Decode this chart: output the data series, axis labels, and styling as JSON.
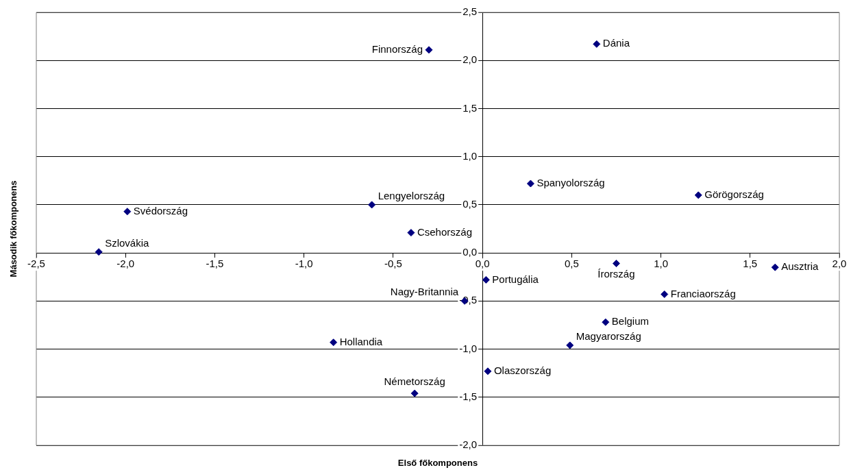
{
  "chart_data": {
    "type": "scatter",
    "xlabel": "Első főkomponens",
    "ylabel": "Második főkomponens",
    "series": [
      {
        "type": "scatter",
        "color": "#000080",
        "x": [
          -0.3,
          0.64,
          0.27,
          1.21,
          -0.62,
          -1.99,
          -2.15,
          -0.4,
          0.75,
          1.64,
          0.02,
          -0.1,
          1.02,
          0.69,
          -0.835,
          0.49,
          0.03,
          -0.38
        ],
        "values": [
          2.11,
          2.17,
          0.72,
          0.6,
          0.5,
          0.43,
          0.01,
          0.21,
          -0.11,
          -0.15,
          -0.28,
          -0.5,
          -0.43,
          -0.72,
          -0.93,
          -0.96,
          -1.23,
          -1.46
        ]
      }
    ],
    "annotations": [
      {
        "text": "Finnország",
        "x": -0.3,
        "y": 2.11
      },
      {
        "text": "Dánia",
        "x": 0.64,
        "y": 2.17
      },
      {
        "text": "Spanyolország",
        "x": 0.27,
        "y": 0.72
      },
      {
        "text": "Görögország",
        "x": 1.21,
        "y": 0.6
      },
      {
        "text": "Lengyelország",
        "x": -0.62,
        "y": 0.5
      },
      {
        "text": "Svédország",
        "x": -1.99,
        "y": 0.43
      },
      {
        "text": "Szlovákia",
        "x": -2.15,
        "y": 0.01
      },
      {
        "text": "Csehország",
        "x": -0.4,
        "y": 0.21
      },
      {
        "text": "Írország",
        "x": 0.75,
        "y": -0.11
      },
      {
        "text": "Ausztria",
        "x": 1.64,
        "y": -0.15
      },
      {
        "text": "Portugália",
        "x": 0.02,
        "y": -0.28
      },
      {
        "text": "Nagy-Britannia",
        "x": -0.1,
        "y": -0.5
      },
      {
        "text": "Franciaország",
        "x": 1.02,
        "y": -0.43
      },
      {
        "text": "Belgium",
        "x": 0.69,
        "y": -0.72
      },
      {
        "text": "Hollandia",
        "x": -0.835,
        "y": -0.93
      },
      {
        "text": "Magyarország",
        "x": 0.49,
        "y": -0.96
      },
      {
        "text": "Olaszország",
        "x": 0.03,
        "y": -1.23
      },
      {
        "text": "Németország",
        "x": -0.38,
        "y": -1.46
      }
    ],
    "xlim": [
      -2.5,
      2.0
    ],
    "xticks": [
      {
        "value": -2.5,
        "label": "-2,5"
      },
      {
        "value": -2.0,
        "label": "-2,0"
      },
      {
        "value": -1.5,
        "label": "-1,5"
      },
      {
        "value": -1.0,
        "label": "-1,0"
      },
      {
        "value": -0.5,
        "label": "-0,5"
      },
      {
        "value": 0,
        "label": "0,0"
      },
      {
        "value": 0.5,
        "label": "0,5"
      },
      {
        "value": 1.0,
        "label": "1,0"
      },
      {
        "value": 1.5,
        "label": "1,5"
      },
      {
        "value": 2.0,
        "label": "2,0"
      }
    ],
    "ylim": [
      -2.0,
      2.5
    ],
    "yticks": [
      {
        "value": -2.0,
        "label": "-2,0"
      },
      {
        "value": -1.5,
        "label": "-1,5"
      },
      {
        "value": -1.0,
        "label": "-1,0"
      },
      {
        "value": -0.5,
        "label": "-0,5"
      },
      {
        "value": 0,
        "label": "0,0"
      },
      {
        "value": 0.5,
        "label": "0,5"
      },
      {
        "value": 1.0,
        "label": "1,0"
      },
      {
        "value": 1.5,
        "label": "1,5"
      },
      {
        "value": 2.0,
        "label": "2,0"
      },
      {
        "value": 2.5,
        "label": "2,5"
      }
    ],
    "grid": "y",
    "legend": false,
    "marker": "diamond"
  }
}
